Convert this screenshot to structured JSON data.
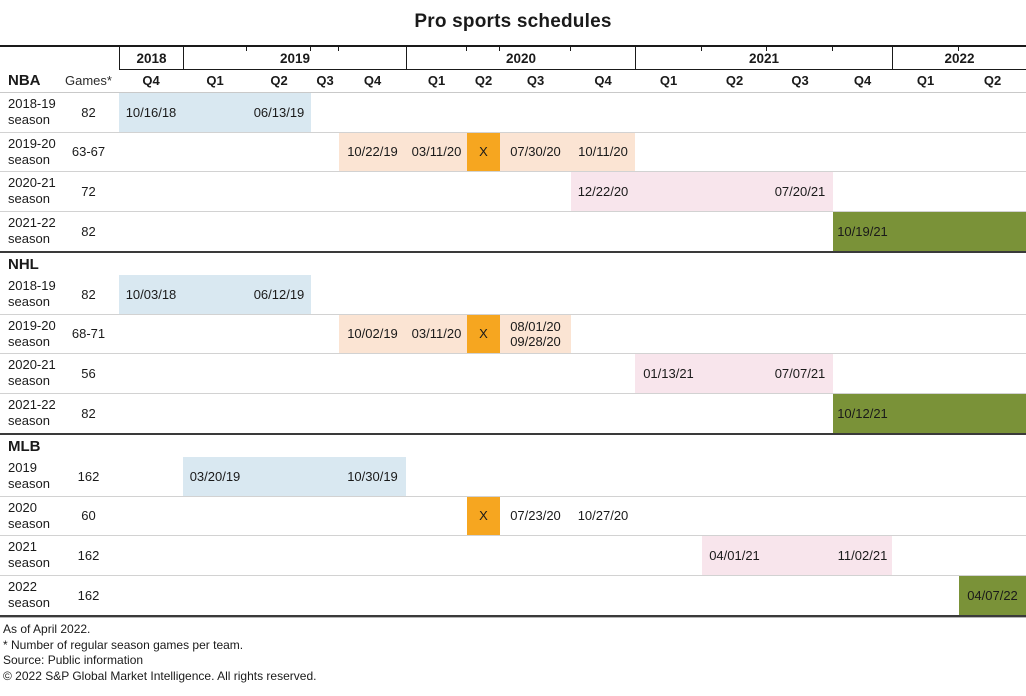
{
  "title": "Pro sports schedules",
  "colors": {
    "blue": "#d9e8f1",
    "peach": "#fbe4d3",
    "orange": "#f6a620",
    "pink": "#f8e5ec",
    "olive": "#7a9238",
    "text": "#1a1a1a",
    "grid_light": "#d2d2d2",
    "grid_dark": "#3a3a3a"
  },
  "footnotes": [
    "As of April 2022.",
    "* Number of regular season games per team.",
    "Source: Public information",
    "© 2022 S&P Global Market Intelligence. All rights reserved."
  ],
  "chart_data": {
    "type": "gantt",
    "title": "Pro sports schedules",
    "corner": {
      "league": "NBA",
      "games": "Games*"
    },
    "years": [
      {
        "label": "2018",
        "from": 2,
        "to": 2
      },
      {
        "label": "2019",
        "from": 3,
        "to": 6
      },
      {
        "label": "2020",
        "from": 7,
        "to": 10
      },
      {
        "label": "2021",
        "from": 11,
        "to": 14
      },
      {
        "label": "2022",
        "from": 15,
        "to": 16
      }
    ],
    "quarters": [
      "Q4",
      "Q1",
      "Q2",
      "Q3",
      "Q4",
      "Q1",
      "Q2",
      "Q3",
      "Q4",
      "Q1",
      "Q2",
      "Q3",
      "Q4",
      "Q1",
      "Q2"
    ],
    "sections": [
      {
        "league": "NBA",
        "header_row": false,
        "rows": [
          {
            "label_lines": [
              "2018-19",
              "season"
            ],
            "games": "82",
            "bars": [
              {
                "color": "blue",
                "from": 2,
                "to": 4
              }
            ],
            "cells": [
              {
                "col": 2,
                "lines": [
                  "10/16/18"
                ]
              },
              {
                "col": 4,
                "lines": [
                  "06/13/19"
                ]
              }
            ]
          },
          {
            "label_lines": [
              "2019-20",
              "season"
            ],
            "games": "63-67",
            "bars": [
              {
                "color": "peach",
                "from": 6,
                "to": 7
              },
              {
                "color": "orange",
                "from": 8,
                "to": 8
              },
              {
                "color": "peach",
                "from": 9,
                "to": 10
              }
            ],
            "cells": [
              {
                "col": 6,
                "lines": [
                  "10/22/19"
                ]
              },
              {
                "col": 7,
                "lines": [
                  "03/11/20"
                ]
              },
              {
                "col": 8,
                "lines": [
                  "X"
                ]
              },
              {
                "col": 9,
                "lines": [
                  "07/30/20"
                ]
              },
              {
                "col": 10,
                "lines": [
                  "10/11/20"
                ]
              }
            ]
          },
          {
            "label_lines": [
              "2020-21",
              "season"
            ],
            "games": "72",
            "bars": [
              {
                "color": "pink",
                "from": 10,
                "to": 13
              }
            ],
            "cells": [
              {
                "col": 10,
                "lines": [
                  "12/22/20"
                ]
              },
              {
                "col": 13,
                "lines": [
                  "07/20/21"
                ]
              }
            ]
          },
          {
            "label_lines": [
              "2021-22",
              "season"
            ],
            "games": "82",
            "bars": [
              {
                "color": "olive",
                "from": 14,
                "to": 16
              }
            ],
            "cells": [
              {
                "col": 14,
                "lines": [
                  "10/19/21"
                ]
              }
            ]
          }
        ]
      },
      {
        "league": "NHL",
        "header_row": true,
        "rows": [
          {
            "label_lines": [
              "2018-19",
              "season"
            ],
            "games": "82",
            "bars": [
              {
                "color": "blue",
                "from": 2,
                "to": 4
              }
            ],
            "cells": [
              {
                "col": 2,
                "lines": [
                  "10/03/18"
                ]
              },
              {
                "col": 4,
                "lines": [
                  "06/12/19"
                ]
              }
            ]
          },
          {
            "label_lines": [
              "2019-20",
              "season"
            ],
            "games": "68-71",
            "bars": [
              {
                "color": "peach",
                "from": 6,
                "to": 7
              },
              {
                "color": "orange",
                "from": 8,
                "to": 8
              },
              {
                "color": "peach",
                "from": 9,
                "to": 9
              }
            ],
            "cells": [
              {
                "col": 6,
                "lines": [
                  "10/02/19"
                ]
              },
              {
                "col": 7,
                "lines": [
                  "03/11/20"
                ]
              },
              {
                "col": 8,
                "lines": [
                  "X"
                ]
              },
              {
                "col": 9,
                "lines": [
                  "08/01/20",
                  "09/28/20"
                ]
              }
            ]
          },
          {
            "label_lines": [
              "2020-21",
              "season"
            ],
            "games": "56",
            "bars": [
              {
                "color": "pink",
                "from": 11,
                "to": 13
              }
            ],
            "cells": [
              {
                "col": 11,
                "lines": [
                  "01/13/21"
                ]
              },
              {
                "col": 13,
                "lines": [
                  "07/07/21"
                ]
              }
            ]
          },
          {
            "label_lines": [
              "2021-22",
              "season"
            ],
            "games": "82",
            "bars": [
              {
                "color": "olive",
                "from": 14,
                "to": 16
              }
            ],
            "cells": [
              {
                "col": 14,
                "lines": [
                  "10/12/21"
                ]
              }
            ]
          }
        ]
      },
      {
        "league": "MLB",
        "header_row": true,
        "rows": [
          {
            "label_lines": [
              "2019",
              "season"
            ],
            "games": "162",
            "bars": [
              {
                "color": "blue",
                "from": 3,
                "to": 6
              }
            ],
            "cells": [
              {
                "col": 3,
                "lines": [
                  "03/20/19"
                ]
              },
              {
                "col": 6,
                "lines": [
                  "10/30/19"
                ]
              }
            ]
          },
          {
            "label_lines": [
              "2020",
              "season"
            ],
            "games": "60",
            "bars": [
              {
                "color": "orange",
                "from": 8,
                "to": 8
              }
            ],
            "cells": [
              {
                "col": 8,
                "lines": [
                  "X"
                ]
              },
              {
                "col": 9,
                "lines": [
                  "07/23/20"
                ]
              },
              {
                "col": 10,
                "lines": [
                  "10/27/20"
                ]
              }
            ]
          },
          {
            "label_lines": [
              "2021",
              "season"
            ],
            "games": "162",
            "bars": [
              {
                "color": "pink",
                "from": 12,
                "to": 14
              }
            ],
            "cells": [
              {
                "col": 12,
                "lines": [
                  "04/01/21"
                ]
              },
              {
                "col": 14,
                "lines": [
                  "11/02/21"
                ]
              }
            ]
          },
          {
            "label_lines": [
              "2022",
              "season"
            ],
            "games": "162",
            "bars": [
              {
                "color": "olive",
                "from": 16,
                "to": 16
              }
            ],
            "cells": [
              {
                "col": 16,
                "lines": [
                  "04/07/22"
                ]
              }
            ]
          }
        ]
      }
    ]
  }
}
